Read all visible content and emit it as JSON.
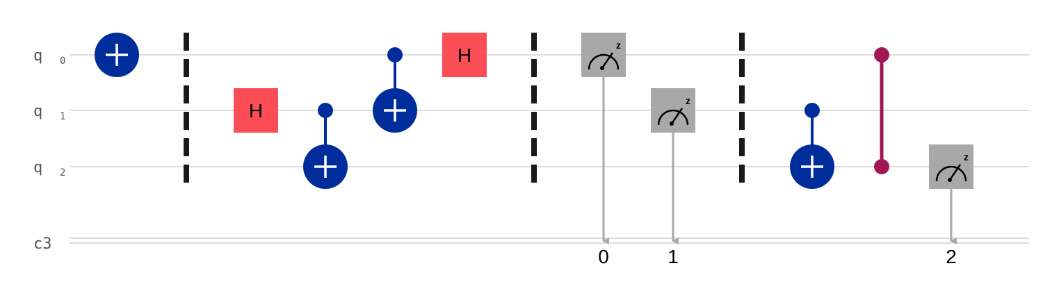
{
  "circuit": {
    "qubits": [
      {
        "name": "q",
        "index": "0"
      },
      {
        "name": "q",
        "index": "1"
      },
      {
        "name": "q",
        "index": "2"
      }
    ],
    "classical_register": {
      "name": "c3"
    },
    "gates": [
      {
        "type": "x",
        "qubit": 0,
        "col": 0
      },
      {
        "type": "barrier",
        "col": 1
      },
      {
        "type": "h",
        "qubit": 1,
        "col": 2,
        "label": "H"
      },
      {
        "type": "cx",
        "control": 1,
        "target": 2,
        "col": 3
      },
      {
        "type": "cx",
        "control": 0,
        "target": 1,
        "col": 4
      },
      {
        "type": "h",
        "qubit": 0,
        "col": 5,
        "label": "H"
      },
      {
        "type": "barrier",
        "col": 6
      },
      {
        "type": "measure",
        "qubit": 0,
        "col": 7,
        "clbit": "0",
        "basis": "z"
      },
      {
        "type": "measure",
        "qubit": 1,
        "col": 8,
        "clbit": "1",
        "basis": "z"
      },
      {
        "type": "barrier",
        "col": 9
      },
      {
        "type": "cx",
        "control": 1,
        "target": 2,
        "col": 10
      },
      {
        "type": "cz",
        "qubits": [
          0,
          2
        ],
        "col": 11
      },
      {
        "type": "measure",
        "qubit": 2,
        "col": 12,
        "clbit": "2",
        "basis": "z"
      }
    ],
    "colors": {
      "cx": "#002d9c",
      "h": "#fa4d56",
      "measure": "#a8a8a8",
      "cz": "#9f1853",
      "barrier": "#1a1a1a",
      "classical_arrow": "#a8a8a8"
    }
  }
}
